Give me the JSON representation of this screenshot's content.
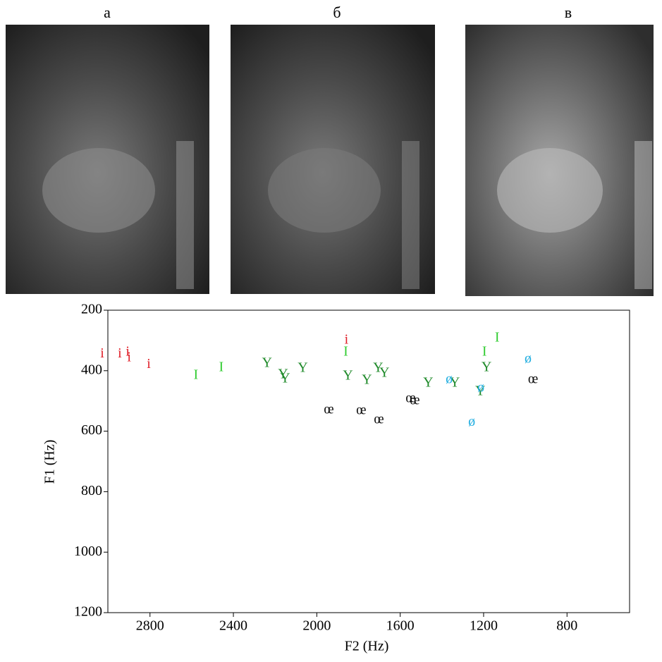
{
  "panel_labels": [
    "а",
    "б",
    "в"
  ],
  "chart_data": {
    "type": "scatter",
    "xlabel": "F2 (Hz)",
    "ylabel": "F1 (Hz)",
    "xlim": [
      3002,
      500
    ],
    "xticks": [
      2800,
      2400,
      2000,
      1600,
      1200,
      800
    ],
    "ylim": [
      200,
      1200
    ],
    "yticks": [
      200,
      400,
      600,
      800,
      1000,
      1200
    ],
    "x_reversed": true,
    "y_reversed": true,
    "series": [
      {
        "name": "i",
        "color": "#e0202a",
        "x": [
          3029,
          2945,
          2907,
          2900,
          2806,
          1858
        ],
        "values": [
          345,
          345,
          340,
          358,
          380,
          300
        ]
      },
      {
        "name": "I",
        "color": "#33cc33",
        "x": [
          2580,
          2458,
          1861,
          1196,
          1135
        ],
        "values": [
          417,
          391,
          340,
          340,
          293
        ]
      },
      {
        "name": "Y",
        "color": "#1f8a2a",
        "x": [
          2239,
          2162,
          2152,
          2067,
          1851,
          1760,
          1706,
          1676,
          1466,
          1338,
          1216,
          1186
        ],
        "values": [
          377,
          414,
          428,
          393,
          419,
          433,
          393,
          410,
          442,
          442,
          470,
          391
        ]
      },
      {
        "name": "œ",
        "color": "#111111",
        "x": [
          1942,
          1787,
          1702,
          1550,
          1530,
          963
        ],
        "values": [
          531,
          533,
          564,
          494,
          501,
          431
        ]
      },
      {
        "name": "ø",
        "color": "#22aee0",
        "x": [
          1365,
          1213,
          1257,
          987
        ],
        "values": [
          431,
          459,
          571,
          363
        ]
      }
    ]
  }
}
